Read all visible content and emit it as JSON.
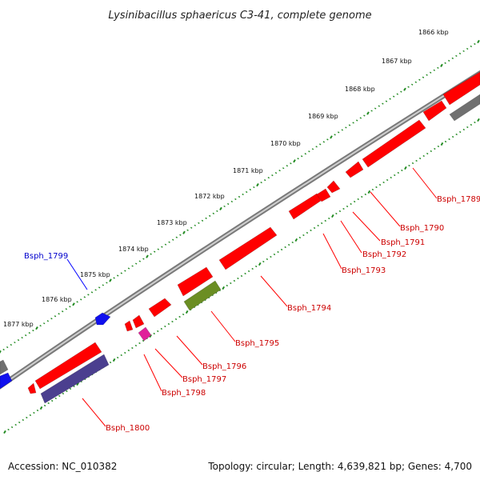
{
  "title": "Lysinibacillus sphaericus C3-41, complete genome",
  "footer": {
    "accession": "Accession: NC_010382",
    "summary": "Topology: circular; Length: 4,639,821 bp; Genes: 4,700"
  },
  "colors": {
    "forward_gene": "#ff0000",
    "reverse_gene": "#ff0000",
    "olive_gene": "#6b8e23",
    "magenta_gene": "#e0209a",
    "purple_gene": "#4b3f8f",
    "blue_gene": "#1010ee",
    "grey_gene": "#707070",
    "backbone": "#8a8a8a",
    "tick": "#228b22",
    "label_red": "#cc0000",
    "label_blue": "#0000cc"
  },
  "scale_labels": [
    "1866 kbp",
    "1867 kbp",
    "1868 kbp",
    "1869 kbp",
    "1870 kbp",
    "1871 kbp",
    "1872 kbp",
    "1873 kbp",
    "1874 kbp",
    "1875 kbp",
    "1876 kbp",
    "1877 kbp"
  ],
  "gene_labels": [
    {
      "text": "Bsph_1789",
      "color": "red"
    },
    {
      "text": "Bsph_1790",
      "color": "red"
    },
    {
      "text": "Bsph_1791",
      "color": "red"
    },
    {
      "text": "Bsph_1792",
      "color": "red"
    },
    {
      "text": "Bsph_1793",
      "color": "red"
    },
    {
      "text": "Bsph_1794",
      "color": "red"
    },
    {
      "text": "Bsph_1795",
      "color": "red"
    },
    {
      "text": "Bsph_1796",
      "color": "red"
    },
    {
      "text": "Bsph_1797",
      "color": "red"
    },
    {
      "text": "Bsph_1798",
      "color": "red"
    },
    {
      "text": "Bsph_1799",
      "color": "blue"
    },
    {
      "text": "Bsph_1800",
      "color": "red"
    }
  ]
}
